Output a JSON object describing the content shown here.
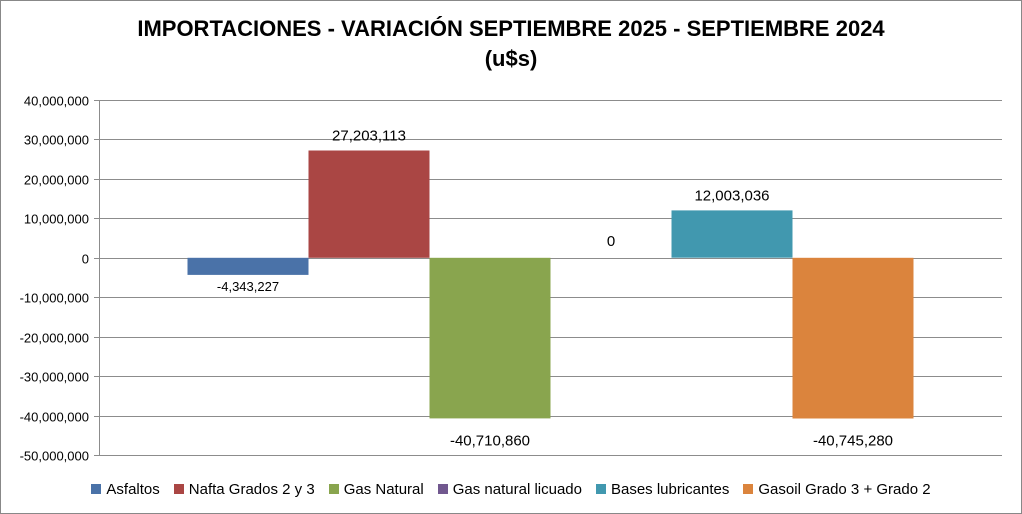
{
  "chart_data": {
    "type": "bar",
    "title_line1": "IMPORTACIONES - VARIACIÓN SEPTIEMBRE 2025 - SEPTIEMBRE 2024",
    "title_line2": "(u$s)",
    "xlabel": "",
    "ylabel": "",
    "ylim": [
      -50000000,
      40000000
    ],
    "ytick_step": 10000000,
    "ytick_labels": [
      "40,000,000",
      "30,000,000",
      "20,000,000",
      "10,000,000",
      "0",
      "-10,000,000",
      "-20,000,000",
      "-30,000,000",
      "-40,000,000",
      "-50,000,000"
    ],
    "grid": true,
    "legend_position": "bottom",
    "series": [
      {
        "name": "Asfaltos",
        "value": -4343227,
        "label": "-4,343,227",
        "color": "#4a72a8"
      },
      {
        "name": "Nafta Grados 2 y 3",
        "value": 27203113,
        "label": "27,203,113",
        "color": "#aa4644"
      },
      {
        "name": "Gas Natural",
        "value": -40710860,
        "label": "-40,710,860",
        "color": "#89a54e"
      },
      {
        "name": "Gas natural licuado",
        "value": 0,
        "label": "0",
        "color": "#71588f"
      },
      {
        "name": "Bases lubricantes",
        "value": 12003036,
        "label": "12,003,036",
        "color": "#4198af"
      },
      {
        "name": "Gasoil Grado 3 + Grado 2",
        "value": -40745280,
        "label": "-40,745,280",
        "color": "#db843d"
      }
    ]
  }
}
